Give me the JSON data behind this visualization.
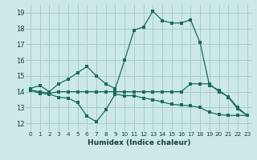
{
  "xlabel": "Humidex (Indice chaleur)",
  "xlim": [
    -0.5,
    23.5
  ],
  "ylim": [
    11.5,
    19.5
  ],
  "yticks": [
    12,
    13,
    14,
    15,
    16,
    17,
    18,
    19
  ],
  "xticks": [
    0,
    1,
    2,
    3,
    4,
    5,
    6,
    7,
    8,
    9,
    10,
    11,
    12,
    13,
    14,
    15,
    16,
    17,
    18,
    19,
    20,
    21,
    22,
    23
  ],
  "background_color": "#cce8e8",
  "grid_color": "#aacccc",
  "line_color": "#1a6b5a",
  "series": {
    "top": [
      14.2,
      14.4,
      14.0,
      14.5,
      14.8,
      15.2,
      15.6,
      15.0,
      14.5,
      14.2,
      16.0,
      17.9,
      18.1,
      19.1,
      18.5,
      18.35,
      18.35,
      18.55,
      17.1,
      14.4,
      14.1,
      13.65,
      12.9,
      12.5
    ],
    "mid": [
      14.1,
      14.0,
      13.9,
      14.0,
      14.0,
      14.0,
      14.0,
      14.0,
      14.0,
      14.0,
      14.0,
      14.0,
      14.0,
      14.0,
      14.0,
      14.0,
      14.0,
      14.5,
      14.5,
      14.5,
      14.0,
      13.7,
      13.0,
      12.5
    ],
    "bot": [
      14.1,
      13.9,
      13.85,
      13.65,
      13.6,
      13.3,
      12.45,
      12.1,
      12.85,
      13.85,
      13.75,
      13.75,
      13.6,
      13.5,
      13.35,
      13.2,
      13.15,
      13.1,
      13.0,
      12.7,
      12.55,
      12.5,
      12.5,
      12.5
    ]
  }
}
